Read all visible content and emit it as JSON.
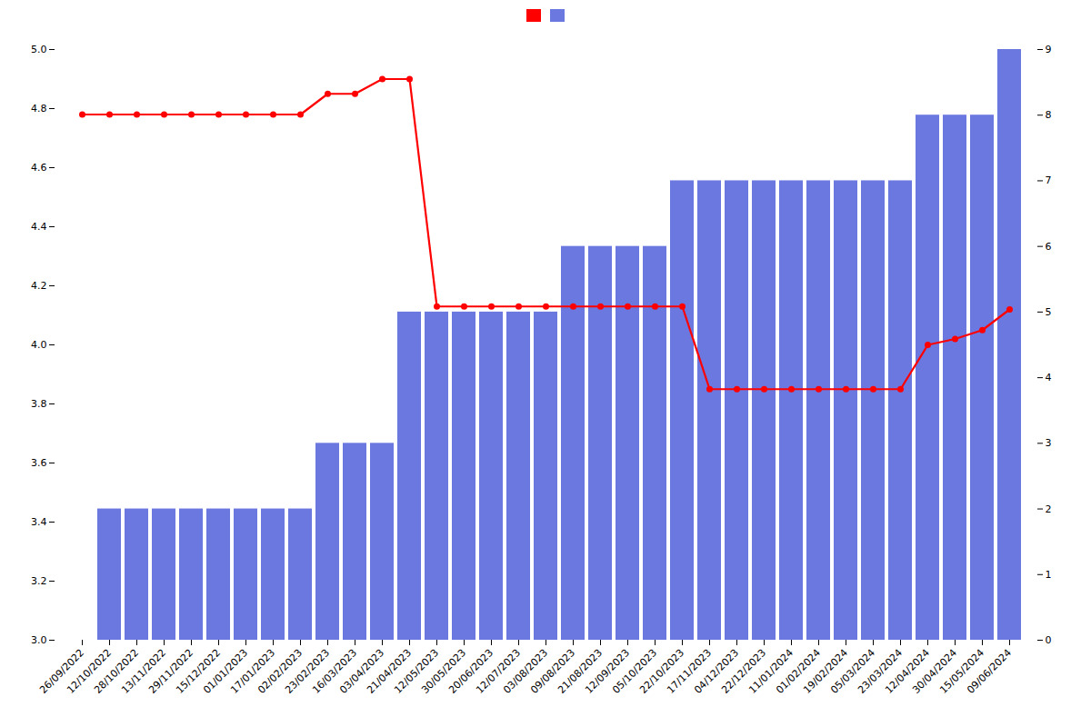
{
  "chart_data": {
    "type": "bar",
    "categories": [
      "26/09/2022",
      "12/10/2022",
      "28/10/2022",
      "13/11/2022",
      "29/11/2022",
      "15/12/2022",
      "01/01/2023",
      "17/01/2023",
      "02/02/2023",
      "23/02/2023",
      "16/03/2023",
      "03/04/2023",
      "21/04/2023",
      "12/05/2023",
      "30/05/2023",
      "20/06/2023",
      "12/07/2023",
      "03/08/2023",
      "09/08/2023",
      "21/08/2023",
      "12/09/2023",
      "05/10/2023",
      "22/10/2023",
      "17/11/2023",
      "04/12/2023",
      "22/12/2023",
      "11/01/2024",
      "01/02/2024",
      "19/02/2024",
      "05/03/2024",
      "23/03/2024",
      "12/04/2024",
      "30/04/2024",
      "15/05/2024",
      "09/06/2024"
    ],
    "series": [
      {
        "type": "line",
        "color": "#ff0000",
        "marker": "circle",
        "values": [
          4.78,
          4.78,
          4.78,
          4.78,
          4.78,
          4.78,
          4.78,
          4.78,
          4.78,
          4.85,
          4.85,
          4.9,
          4.9,
          4.13,
          4.13,
          4.13,
          4.13,
          4.13,
          4.13,
          4.13,
          4.13,
          4.13,
          4.13,
          3.85,
          3.85,
          3.85,
          3.85,
          3.85,
          3.85,
          3.85,
          3.85,
          4.0,
          4.02,
          4.05,
          4.12
        ]
      },
      {
        "type": "bar",
        "color": "#6b78e0",
        "axis": "y2",
        "values": [
          0,
          2,
          2,
          2,
          2,
          2,
          2,
          2,
          2,
          3,
          3,
          3,
          5,
          5,
          5,
          5,
          5,
          5,
          6,
          6,
          6,
          6,
          7,
          7,
          7,
          7,
          7,
          7,
          7,
          7,
          7,
          8,
          8,
          8,
          9
        ]
      }
    ],
    "ylim": [
      3.0,
      5.0
    ],
    "yticks": [
      {
        "value": 3.0,
        "label": "3.0"
      },
      3.2,
      3.4,
      3.6,
      3.8,
      {
        "value": 4.0,
        "label": "4.0"
      },
      4.2,
      4.4,
      4.6,
      4.8,
      {
        "value": 5.0,
        "label": "5.0"
      }
    ],
    "y2lim": [
      0,
      9
    ],
    "y2ticks": [
      0,
      1,
      2,
      3,
      4,
      5,
      6,
      7,
      8,
      9
    ],
    "grid": false,
    "legend": "top"
  }
}
